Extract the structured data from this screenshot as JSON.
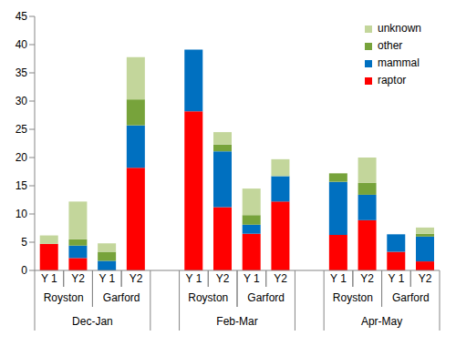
{
  "chart_data": {
    "type": "bar",
    "stacked": true,
    "grid": false,
    "legend": "top-right",
    "categories": [
      "Y 1",
      "Y2",
      "Y 1",
      "Y2",
      null,
      "Y 1",
      "Y2",
      "Y 1",
      "Y2",
      null,
      "Y 1",
      "Y2",
      "Y 1",
      "Y2"
    ],
    "sites": [
      "Royston",
      "Royston",
      "Garford",
      "Garford",
      null,
      "Royston",
      "Royston",
      "Garford",
      "Garford",
      null,
      "Royston",
      "Royston",
      "Garford",
      "Garford"
    ],
    "seasons": [
      "Dec-Jan",
      "Dec-Jan",
      "Dec-Jan",
      "Dec-Jan",
      null,
      "Feb-Mar",
      "Feb-Mar",
      "Feb-Mar",
      "Feb-Mar",
      null,
      "Apr-May",
      "Apr-May",
      "Apr-May",
      "Apr-May"
    ],
    "series": [
      {
        "name": "raptor",
        "color": "#ff0000",
        "values": [
          4.7,
          2.2,
          0,
          18.2,
          null,
          28.2,
          11.2,
          6.5,
          12.2,
          null,
          6.3,
          8.9,
          3.3,
          1.6
        ]
      },
      {
        "name": "mammal",
        "color": "#0070c0",
        "values": [
          0,
          2.2,
          1.7,
          7.5,
          null,
          10.9,
          9.9,
          1.6,
          4.5,
          null,
          9.4,
          4.5,
          3.1,
          4.4
        ]
      },
      {
        "name": "other",
        "color": "#77a33b",
        "values": [
          0,
          1.1,
          1.6,
          4.6,
          null,
          0,
          1.2,
          1.7,
          0,
          null,
          1.5,
          2.1,
          0,
          0.5
        ]
      },
      {
        "name": "unknown",
        "color": "#c3d69b",
        "values": [
          1.5,
          6.7,
          1.5,
          7.5,
          null,
          0,
          2.2,
          4.7,
          3.0,
          null,
          0,
          4.5,
          0,
          1.1
        ]
      }
    ],
    "ylim": [
      0,
      45
    ],
    "yticks": [
      0,
      5,
      10,
      15,
      20,
      25,
      30,
      35,
      40,
      45
    ]
  }
}
